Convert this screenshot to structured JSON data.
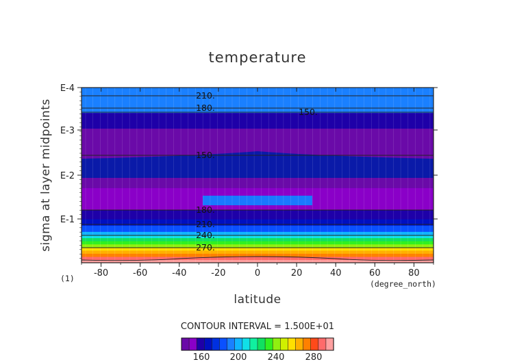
{
  "chart_data": {
    "type": "heatmap",
    "title": "temperature",
    "xlabel": "latitude",
    "xunit": "(degree_north)",
    "ylabel": "sigma at layer midpoints",
    "ymult": "(1)",
    "xlim": [
      -90,
      90
    ],
    "xticks": [
      -80,
      -60,
      -40,
      -20,
      0,
      20,
      40,
      60,
      80
    ],
    "ylim_log10": [
      -5,
      -4
    ],
    "yticks": [
      "E-4",
      "E-3",
      "E-2",
      "E-1"
    ],
    "contour_interval_text": "CONTOUR INTERVAL = 1.500E+01",
    "contour_labels": [
      "210.",
      "180.",
      "150.",
      "150.",
      "180.",
      "210.",
      "240.",
      "270."
    ],
    "colorbar_ticks": [
      160,
      200,
      240,
      280
    ],
    "colorbar_colors": [
      "#6a0aa8",
      "#8a00c8",
      "#1e00a8",
      "#0010c0",
      "#0030e0",
      "#0a50ff",
      "#1a80ff",
      "#10b4ff",
      "#10e0e8",
      "#10f0a0",
      "#10e060",
      "#30f020",
      "#90f010",
      "#d0f000",
      "#ffe000",
      "#ffb000",
      "#ff8000",
      "#ff4a1a",
      "#ff6a6a",
      "#ffa0a0"
    ],
    "levels_approx": [
      {
        "y_log": -5.0,
        "value": 292
      },
      {
        "y_log": -4.95,
        "value": 285
      },
      {
        "y_log": -4.9,
        "value": 277
      },
      {
        "y_log": -4.85,
        "value": 265
      },
      {
        "y_log": -4.8,
        "value": 255
      },
      {
        "y_log": -4.75,
        "value": 245
      },
      {
        "y_log": -4.7,
        "value": 235
      },
      {
        "y_log": -4.65,
        "value": 225
      },
      {
        "y_log": -4.6,
        "value": 215
      },
      {
        "y_log": -4.55,
        "value": 205
      },
      {
        "y_log": -4.5,
        "value": 195
      },
      {
        "y_log": -4.4,
        "value": 178
      },
      {
        "y_log": -4.3,
        "value": 168
      },
      {
        "y_log": -4.15,
        "value": 158
      },
      {
        "y_log": -3.8,
        "value": 148
      },
      {
        "y_log": -3.3,
        "value": 140
      },
      {
        "y_log": -2.85,
        "value": 148
      },
      {
        "y_log": -2.6,
        "value": 175
      },
      {
        "y_log": -2.2,
        "value": 210
      }
    ]
  }
}
